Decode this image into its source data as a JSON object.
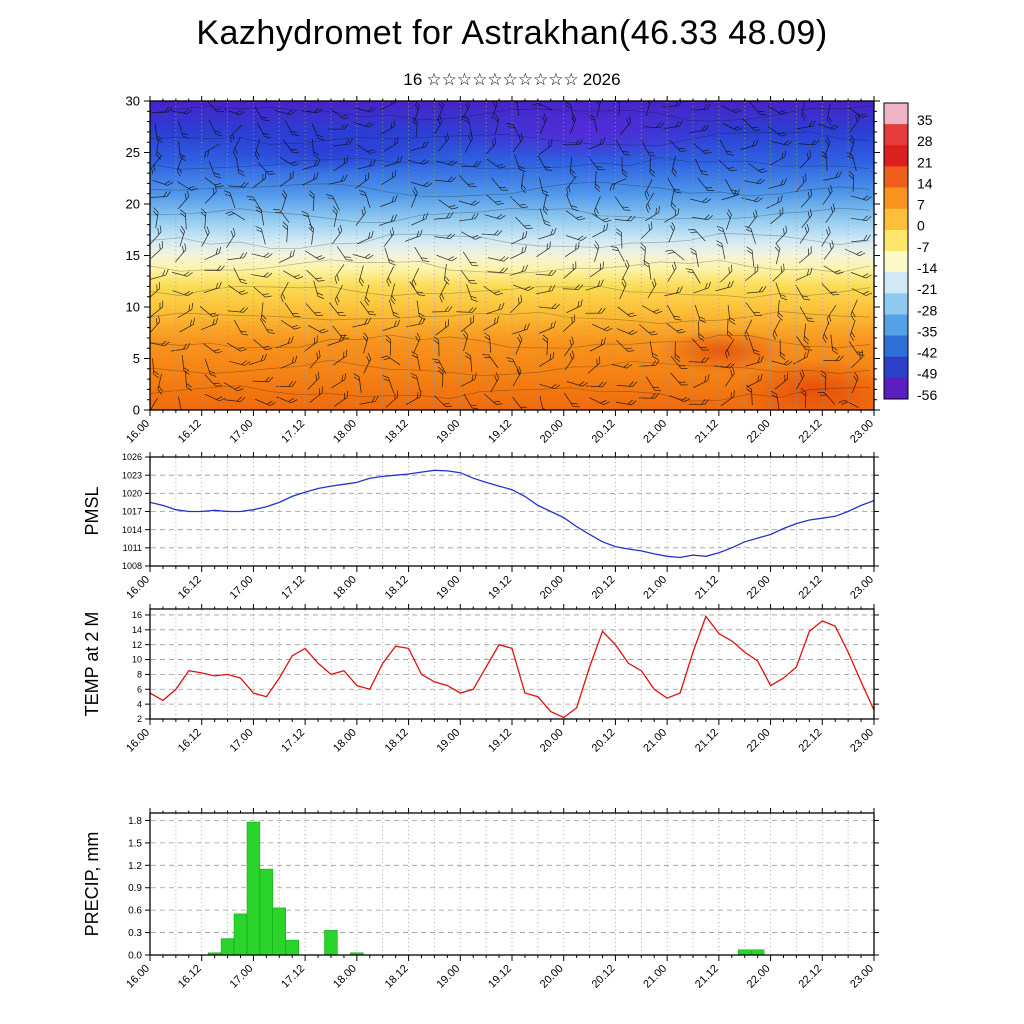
{
  "title": "Kazhydromet for Astrakhan(46.33 48.09)",
  "subtitle": {
    "day": "16",
    "stars": "☆☆☆☆☆☆☆☆☆☆",
    "year": "2026"
  },
  "time_axis": {
    "labels": [
      "16.00",
      "16.12",
      "17.00",
      "17.12",
      "18.00",
      "18.12",
      "19.00",
      "19.12",
      "20.00",
      "20.12",
      "21.00",
      "21.12",
      "22.00",
      "22.12",
      "23.00"
    ],
    "major_step_hours": 12,
    "minor_step_hours": 3,
    "grid_step_hours": 6,
    "total_hours": 168
  },
  "colorbar": {
    "tick_labels": [
      "35",
      "28",
      "21",
      "14",
      "7",
      "0",
      "-7",
      "-14",
      "-21",
      "-28",
      "-35",
      "-42",
      "-49",
      "-56"
    ],
    "colors": [
      "#eeb4c4",
      "#e43b3b",
      "#dc1f1f",
      "#ee5f1e",
      "#f8941e",
      "#fcbf37",
      "#fbe66a",
      "#fdf8c8",
      "#cfe9f6",
      "#8fc9ef",
      "#55a1e6",
      "#2f6fd8",
      "#2b3fc8",
      "#5b1fc0"
    ]
  },
  "chart_data": [
    {
      "id": "cross_section",
      "type": "heatmap",
      "description": "Time-height cross-section of temperature (shaded) with wind barbs",
      "ylabel": "",
      "y_ticks": [
        0,
        5,
        10,
        15,
        20,
        25,
        30
      ],
      "ylim": [
        0,
        30
      ],
      "colorbar_ticks": [
        35,
        28,
        21,
        14,
        7,
        0,
        -7,
        -14,
        -21,
        -28,
        -35,
        -42,
        -49,
        -56
      ],
      "gradient": [
        {
          "pos": 0.0,
          "color": "#4a22c8"
        },
        {
          "pos": 0.1,
          "color": "#2b3fd4"
        },
        {
          "pos": 0.2,
          "color": "#2f62e2"
        },
        {
          "pos": 0.3,
          "color": "#4f97ea"
        },
        {
          "pos": 0.38,
          "color": "#8fc9ef"
        },
        {
          "pos": 0.45,
          "color": "#cfe9f6"
        },
        {
          "pos": 0.5,
          "color": "#f4f4da"
        },
        {
          "pos": 0.545,
          "color": "#fdf3a6"
        },
        {
          "pos": 0.6,
          "color": "#fbdc55"
        },
        {
          "pos": 0.68,
          "color": "#fcbf37"
        },
        {
          "pos": 0.78,
          "color": "#f8941e"
        },
        {
          "pos": 0.9,
          "color": "#f47f12"
        },
        {
          "pos": 1.0,
          "color": "#ef6a0e"
        }
      ]
    },
    {
      "id": "pmsl",
      "type": "line",
      "ylabel": "PMSL",
      "color": "#2233cc",
      "y_ticks": [
        1008,
        1011,
        1014,
        1017,
        1020,
        1023,
        1026
      ],
      "y_tick_labels": [
        "1008",
        "1011",
        "1014",
        "1017",
        "1020",
        "1023",
        "1026"
      ],
      "ylim": [
        1008,
        1026
      ],
      "x_step_hours": 3,
      "values": [
        1018.5,
        1018.0,
        1017.3,
        1017.0,
        1017.0,
        1017.2,
        1017.0,
        1017.0,
        1017.3,
        1017.8,
        1018.5,
        1019.5,
        1020.2,
        1020.8,
        1021.2,
        1021.5,
        1021.8,
        1022.5,
        1022.8,
        1023.0,
        1023.2,
        1023.5,
        1023.8,
        1023.7,
        1023.4,
        1022.5,
        1021.8,
        1021.2,
        1020.6,
        1019.5,
        1018.0,
        1017.0,
        1016.0,
        1014.5,
        1013.2,
        1012.0,
        1011.2,
        1010.8,
        1010.5,
        1010.0,
        1009.6,
        1009.4,
        1009.8,
        1009.6,
        1010.2,
        1011.0,
        1012.0,
        1012.6,
        1013.2,
        1014.2,
        1015.0,
        1015.6,
        1015.9,
        1016.2,
        1017.0,
        1018.0,
        1018.8
      ]
    },
    {
      "id": "temp2m",
      "type": "line",
      "ylabel": "TEMP at 2 M",
      "color": "#e01010",
      "y_ticks": [
        2,
        4,
        6,
        8,
        10,
        12,
        14,
        16
      ],
      "y_tick_labels": [
        "2",
        "4",
        "6",
        "8",
        "10",
        "12",
        "14",
        "16"
      ],
      "ylim": [
        2,
        16.8
      ],
      "x_step_hours": 3,
      "values": [
        5.5,
        4.5,
        6.0,
        8.5,
        8.2,
        7.8,
        8.0,
        7.5,
        5.5,
        5.0,
        7.5,
        10.5,
        11.5,
        9.5,
        8.0,
        8.5,
        6.5,
        6.0,
        9.5,
        11.8,
        11.5,
        8.0,
        7.0,
        6.5,
        5.5,
        6.0,
        9.0,
        12.0,
        11.5,
        5.5,
        5.0,
        3.0,
        2.2,
        3.5,
        9.0,
        13.8,
        12.0,
        9.5,
        8.5,
        6.0,
        4.8,
        5.5,
        11.0,
        15.8,
        13.5,
        12.5,
        11.0,
        9.8,
        6.5,
        7.5,
        9.0,
        13.8,
        15.2,
        14.5,
        11.0,
        7.0,
        3.2
      ]
    },
    {
      "id": "precip",
      "type": "bar",
      "ylabel": "PRECIP, mm",
      "color": "#2bd42b",
      "y_ticks": [
        0,
        0.3,
        0.6,
        0.9,
        1.2,
        1.5,
        1.8
      ],
      "y_tick_labels": [
        "0.0",
        "0.3",
        "0.6",
        "0.9",
        "1.2",
        "1.5",
        "1.8"
      ],
      "ylim": [
        0,
        1.9
      ],
      "x_step_hours": 3,
      "values": [
        0,
        0,
        0,
        0,
        0,
        0.03,
        0.22,
        0.55,
        1.78,
        1.15,
        0.63,
        0.2,
        0,
        0,
        0.33,
        0,
        0.03,
        0,
        0,
        0,
        0,
        0,
        0,
        0,
        0,
        0,
        0,
        0,
        0,
        0,
        0,
        0,
        0,
        0,
        0,
        0,
        0,
        0,
        0,
        0,
        0,
        0,
        0,
        0,
        0,
        0,
        0.07,
        0.07,
        0,
        0,
        0,
        0,
        0,
        0,
        0,
        0,
        0
      ]
    }
  ]
}
